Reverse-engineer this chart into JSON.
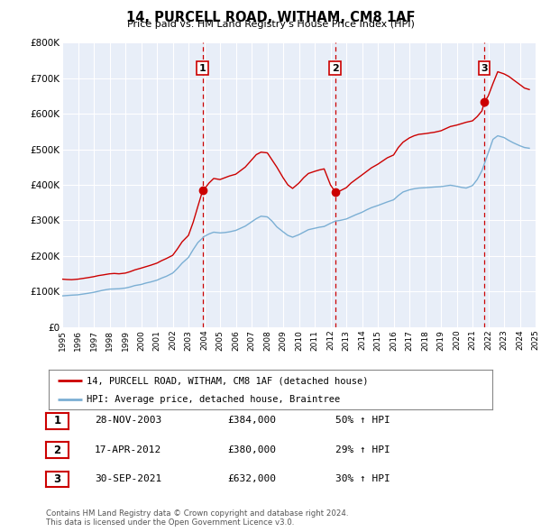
{
  "title": "14, PURCELL ROAD, WITHAM, CM8 1AF",
  "subtitle": "Price paid vs. HM Land Registry's House Price Index (HPI)",
  "x_start_year": 1995,
  "x_end_year": 2025,
  "ylim": [
    0,
    800000
  ],
  "yticks": [
    0,
    100000,
    200000,
    300000,
    400000,
    500000,
    600000,
    700000,
    800000
  ],
  "ytick_labels": [
    "£0",
    "£100K",
    "£200K",
    "£300K",
    "£400K",
    "£500K",
    "£600K",
    "£700K",
    "£800K"
  ],
  "red_line_color": "#cc0000",
  "blue_line_color": "#7bafd4",
  "fig_bg_color": "#ffffff",
  "plot_bg_color": "#e8eef8",
  "grid_color": "#ffffff",
  "sale_points": [
    {
      "year": 2003.9,
      "value": 384000,
      "label": "1"
    },
    {
      "year": 2012.3,
      "value": 380000,
      "label": "2"
    },
    {
      "year": 2021.75,
      "value": 632000,
      "label": "3"
    }
  ],
  "legend_red_label": "14, PURCELL ROAD, WITHAM, CM8 1AF (detached house)",
  "legend_blue_label": "HPI: Average price, detached house, Braintree",
  "table_rows": [
    {
      "num": "1",
      "date": "28-NOV-2003",
      "price": "£384,000",
      "hpi": "50% ↑ HPI"
    },
    {
      "num": "2",
      "date": "17-APR-2012",
      "price": "£380,000",
      "hpi": "29% ↑ HPI"
    },
    {
      "num": "3",
      "date": "30-SEP-2021",
      "price": "£632,000",
      "hpi": "30% ↑ HPI"
    }
  ],
  "footnote": "Contains HM Land Registry data © Crown copyright and database right 2024.\nThis data is licensed under the Open Government Licence v3.0.",
  "red_hpi_data": {
    "years": [
      1995.0,
      1995.3,
      1995.6,
      1996.0,
      1996.3,
      1996.6,
      1997.0,
      1997.3,
      1997.6,
      1998.0,
      1998.3,
      1998.6,
      1999.0,
      1999.3,
      1999.6,
      2000.0,
      2000.3,
      2000.6,
      2001.0,
      2001.3,
      2001.6,
      2002.0,
      2002.3,
      2002.6,
      2003.0,
      2003.3,
      2003.6,
      2003.9,
      2004.0,
      2004.3,
      2004.6,
      2005.0,
      2005.3,
      2005.6,
      2006.0,
      2006.3,
      2006.6,
      2007.0,
      2007.3,
      2007.6,
      2008.0,
      2008.3,
      2008.6,
      2009.0,
      2009.3,
      2009.6,
      2010.0,
      2010.3,
      2010.6,
      2011.0,
      2011.3,
      2011.6,
      2012.0,
      2012.3,
      2012.6,
      2013.0,
      2013.3,
      2013.6,
      2014.0,
      2014.3,
      2014.6,
      2015.0,
      2015.3,
      2015.6,
      2016.0,
      2016.3,
      2016.6,
      2017.0,
      2017.3,
      2017.6,
      2018.0,
      2018.3,
      2018.6,
      2019.0,
      2019.3,
      2019.6,
      2020.0,
      2020.3,
      2020.6,
      2021.0,
      2021.3,
      2021.6,
      2021.75,
      2022.0,
      2022.3,
      2022.6,
      2023.0,
      2023.3,
      2023.6,
      2024.0,
      2024.3,
      2024.6
    ],
    "values": [
      135000,
      134000,
      133500,
      135000,
      137000,
      139000,
      142000,
      145000,
      147000,
      150000,
      151000,
      150000,
      152000,
      156000,
      161000,
      166000,
      170000,
      174000,
      180000,
      187000,
      193000,
      202000,
      220000,
      240000,
      258000,
      295000,
      340000,
      384000,
      388000,
      405000,
      418000,
      415000,
      420000,
      425000,
      430000,
      440000,
      450000,
      470000,
      485000,
      492000,
      490000,
      470000,
      450000,
      420000,
      400000,
      390000,
      405000,
      420000,
      432000,
      438000,
      442000,
      445000,
      400000,
      380000,
      383000,
      392000,
      405000,
      415000,
      428000,
      438000,
      448000,
      458000,
      467000,
      476000,
      484000,
      505000,
      520000,
      532000,
      538000,
      542000,
      544000,
      546000,
      548000,
      552000,
      558000,
      564000,
      568000,
      572000,
      576000,
      580000,
      592000,
      608000,
      632000,
      650000,
      685000,
      718000,
      712000,
      705000,
      695000,
      682000,
      672000,
      668000
    ]
  },
  "blue_hpi_data": {
    "years": [
      1995.0,
      1995.3,
      1995.6,
      1996.0,
      1996.3,
      1996.6,
      1997.0,
      1997.3,
      1997.6,
      1998.0,
      1998.3,
      1998.6,
      1999.0,
      1999.3,
      1999.6,
      2000.0,
      2000.3,
      2000.6,
      2001.0,
      2001.3,
      2001.6,
      2002.0,
      2002.3,
      2002.6,
      2003.0,
      2003.3,
      2003.6,
      2004.0,
      2004.3,
      2004.6,
      2005.0,
      2005.3,
      2005.6,
      2006.0,
      2006.3,
      2006.6,
      2007.0,
      2007.3,
      2007.6,
      2008.0,
      2008.3,
      2008.6,
      2009.0,
      2009.3,
      2009.6,
      2010.0,
      2010.3,
      2010.6,
      2011.0,
      2011.3,
      2011.6,
      2012.0,
      2012.3,
      2012.6,
      2013.0,
      2013.3,
      2013.6,
      2014.0,
      2014.3,
      2014.6,
      2015.0,
      2015.3,
      2015.6,
      2016.0,
      2016.3,
      2016.6,
      2017.0,
      2017.3,
      2017.6,
      2018.0,
      2018.3,
      2018.6,
      2019.0,
      2019.3,
      2019.6,
      2020.0,
      2020.3,
      2020.6,
      2021.0,
      2021.3,
      2021.6,
      2022.0,
      2022.3,
      2022.6,
      2023.0,
      2023.3,
      2023.6,
      2024.0,
      2024.3,
      2024.6
    ],
    "values": [
      88000,
      89000,
      90000,
      91000,
      93000,
      95000,
      98000,
      101000,
      104000,
      107000,
      107500,
      108000,
      110000,
      113000,
      117000,
      120000,
      124000,
      127000,
      132000,
      138000,
      143000,
      152000,
      165000,
      180000,
      196000,
      218000,
      238000,
      255000,
      262000,
      267000,
      265000,
      266000,
      268000,
      272000,
      278000,
      284000,
      296000,
      305000,
      312000,
      310000,
      298000,
      282000,
      268000,
      258000,
      253000,
      260000,
      267000,
      274000,
      278000,
      281000,
      283000,
      292000,
      298000,
      300000,
      304000,
      310000,
      316000,
      323000,
      330000,
      336000,
      342000,
      347000,
      352000,
      358000,
      370000,
      380000,
      386000,
      389000,
      391000,
      392000,
      393000,
      394000,
      395000,
      397000,
      399000,
      396000,
      393000,
      391000,
      398000,
      415000,
      440000,
      490000,
      528000,
      538000,
      533000,
      525000,
      518000,
      510000,
      505000,
      503000
    ]
  }
}
